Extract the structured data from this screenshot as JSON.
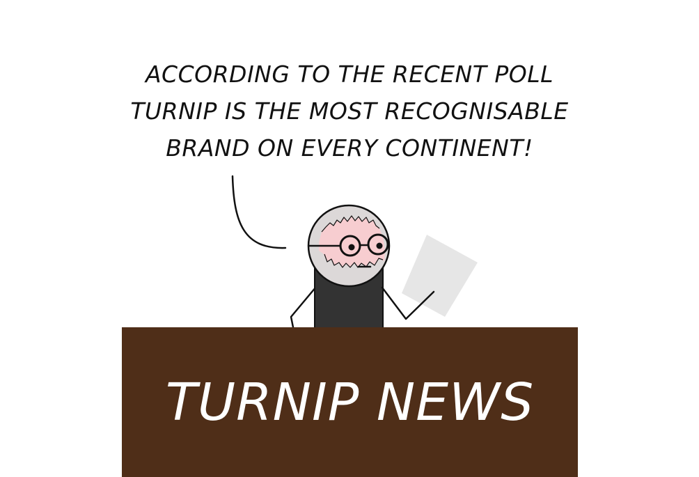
{
  "speech": {
    "lines": [
      "ACCORDING TO THE RECENT POLL",
      "TURNIP IS THE MOST RECOGNISABLE",
      "BRAND ON EVERY CONTINENT!"
    ]
  },
  "desk": {
    "label": "TURNIP NEWS",
    "color": "#4f2e18"
  },
  "colors": {
    "outline": "#111111",
    "head": "#dcd8d8",
    "skin": "#f7cdd0",
    "body": "#333333",
    "paper": "#e6e6e6"
  }
}
